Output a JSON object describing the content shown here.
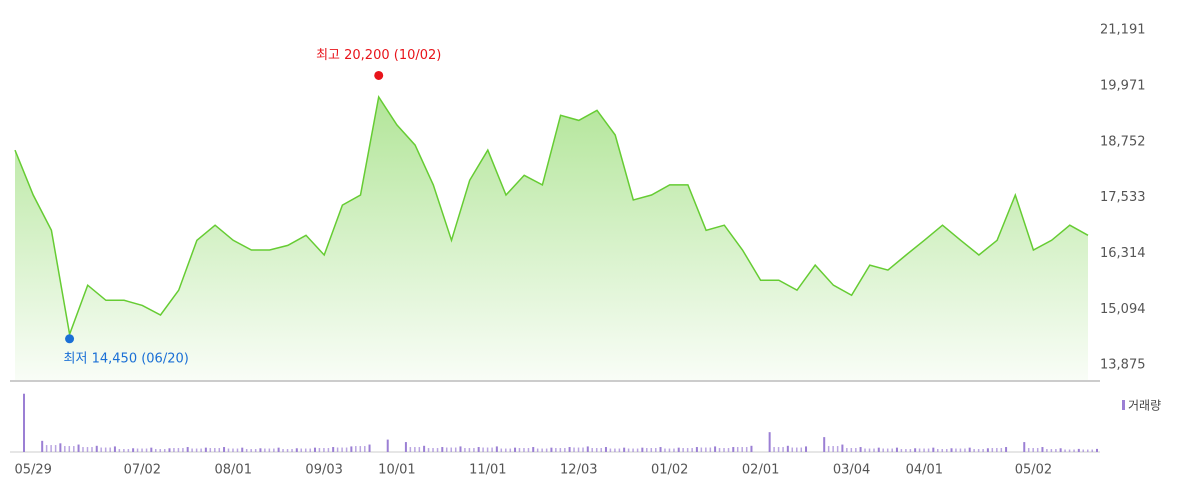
{
  "chart_data": [
    {
      "type": "area",
      "categories": [
        null,
        "05/29",
        null,
        null,
        null,
        null,
        null,
        "07/02",
        null,
        null,
        null,
        null,
        "08/01",
        null,
        null,
        null,
        null,
        "09/03",
        null,
        null,
        null,
        "10/01",
        null,
        null,
        null,
        null,
        "11/01",
        null,
        null,
        null,
        null,
        "12/03",
        null,
        null,
        null,
        null,
        "01/02",
        null,
        null,
        null,
        null,
        "02/01",
        null,
        null,
        null,
        null,
        "03/04",
        null,
        null,
        null,
        "04/01",
        null,
        null,
        null,
        null,
        null,
        "05/02",
        null,
        null,
        null
      ],
      "series": [
        {
          "color": "#66cc33",
          "values": [
            18570,
            17590,
            16820,
            14550,
            15620,
            15290,
            15290,
            15180,
            14970,
            15510,
            16600,
            16930,
            16600,
            16390,
            16390,
            16490,
            16710,
            16280,
            17370,
            17590,
            19730,
            19120,
            18680,
            17810,
            16600,
            17910,
            18570,
            17590,
            18020,
            17810,
            19330,
            19220,
            19440,
            18900,
            17480,
            17590,
            17810,
            17810,
            16820,
            16930,
            16390,
            15730,
            15730,
            15510,
            16060,
            15620,
            15400,
            16060,
            15950,
            16280,
            16600,
            16930,
            16600,
            16280,
            16600,
            17590,
            16390,
            16600,
            16930,
            16710
          ]
        }
      ],
      "ylim": [
        13550,
        21630
      ],
      "yticks": [
        {
          "value": 13875,
          "label": "13,875"
        },
        {
          "value": 15094,
          "label": "15,094"
        },
        {
          "value": 16314,
          "label": "16,314"
        },
        {
          "value": 17533,
          "label": "17,533"
        },
        {
          "value": 18752,
          "label": "18,752"
        },
        {
          "value": 19971,
          "label": "19,971"
        },
        {
          "value": 21191,
          "label": "21,191"
        }
      ],
      "annotations": [
        {
          "text": "최고 20,200 (10/02)",
          "value": 20200,
          "color": "#e8141b"
        },
        {
          "text": "최저 14,450 (06/20)",
          "value": 14450,
          "color": "#1a6fd6"
        }
      ]
    },
    {
      "type": "bar",
      "series": [
        {
          "name": "거래량",
          "color": "#9b7fd4",
          "values": [
            94,
            18,
            14,
            12,
            10,
            9,
            6,
            7,
            6,
            8,
            7,
            8,
            7,
            6,
            7,
            6,
            7,
            8,
            9,
            12,
            20,
            16,
            10,
            8,
            9,
            8,
            9,
            7,
            8,
            7,
            8,
            9,
            8,
            7,
            7,
            8,
            7,
            8,
            9,
            8,
            10,
            32,
            10,
            9,
            24,
            12,
            8,
            7,
            7,
            6,
            7,
            6,
            7,
            6,
            8,
            16,
            8,
            6,
            5,
            5
          ]
        }
      ],
      "ylim": [
        0,
        100
      ]
    }
  ]
}
